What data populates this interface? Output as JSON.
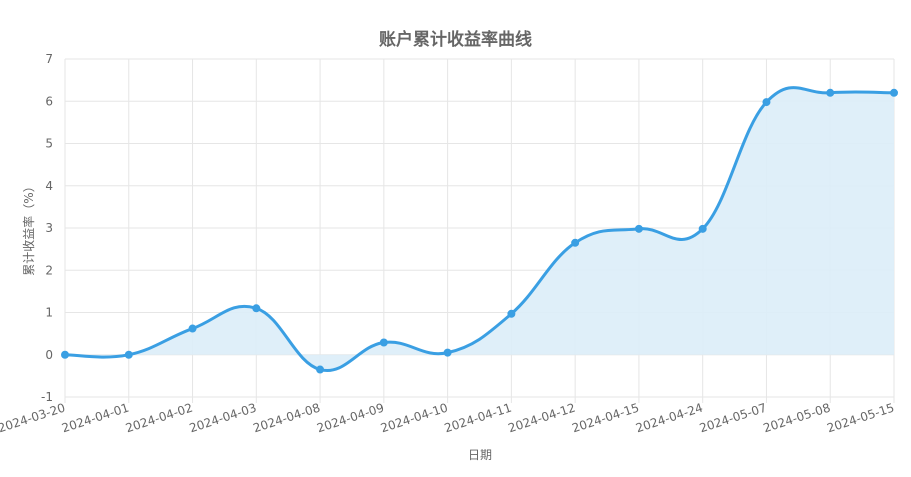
{
  "chart_data": {
    "type": "area",
    "title": "账户累计收益率曲线",
    "xlabel": "日期",
    "ylabel": "累计收益率（%）",
    "ylim": [
      -1,
      7
    ],
    "yticks": [
      -1,
      0,
      1,
      2,
      3,
      4,
      5,
      6,
      7
    ],
    "grid": true,
    "legend": "none",
    "categories": [
      "2024-03-20",
      "2024-04-01",
      "2024-04-02",
      "2024-04-03",
      "2024-04-08",
      "2024-04-09",
      "2024-04-10",
      "2024-04-11",
      "2024-04-12",
      "2024-04-15",
      "2024-04-24",
      "2024-05-07",
      "2024-05-08",
      "2024-05-15"
    ],
    "series": [
      {
        "values": [
          0.0,
          0.0,
          0.62,
          1.1,
          -0.35,
          0.29,
          0.05,
          0.97,
          2.65,
          2.98,
          2.98,
          5.98,
          6.2,
          6.2
        ],
        "color": "#3a9fe3",
        "fill": "#dcedf8"
      }
    ]
  }
}
